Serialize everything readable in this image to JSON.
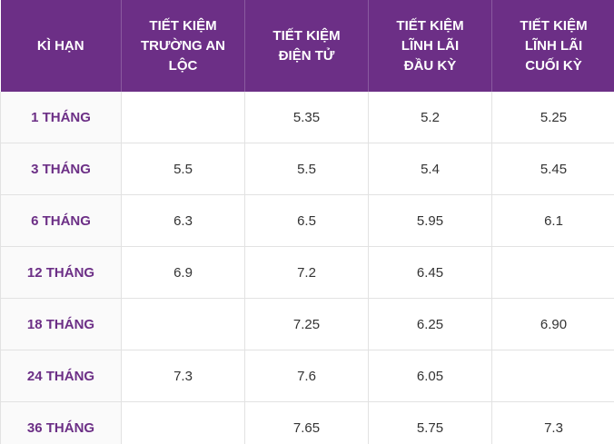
{
  "table": {
    "header": [
      "KÌ HẠN",
      "TIẾT KIỆM TRƯỜNG AN LỘC",
      "TIẾT KIỆM ĐIỆN TỬ",
      "TIẾT KIỆM LĨNH LÃI ĐẦU KỲ",
      "TIẾT KIỆM LĨNH LÃI CUỐI KỲ"
    ],
    "rows": [
      [
        "1 THÁNG",
        null,
        "5.35",
        "5.2",
        "5.25"
      ],
      [
        "3 THÁNG",
        "5.5",
        "5.5",
        "5.4",
        "5.45"
      ],
      [
        "6 THÁNG",
        "6.3",
        "6.5",
        "5.95",
        "6.1"
      ],
      [
        "12 THÁNG",
        "6.9",
        "7.2",
        "6.45",
        null
      ],
      [
        "18 THÁNG",
        null,
        "7.25",
        "6.25",
        "6.90"
      ],
      [
        "24 THÁNG",
        "7.3",
        "7.6",
        "6.05",
        null
      ],
      [
        "36 THÁNG",
        null,
        "7.65",
        "5.75",
        "7.3"
      ]
    ]
  }
}
